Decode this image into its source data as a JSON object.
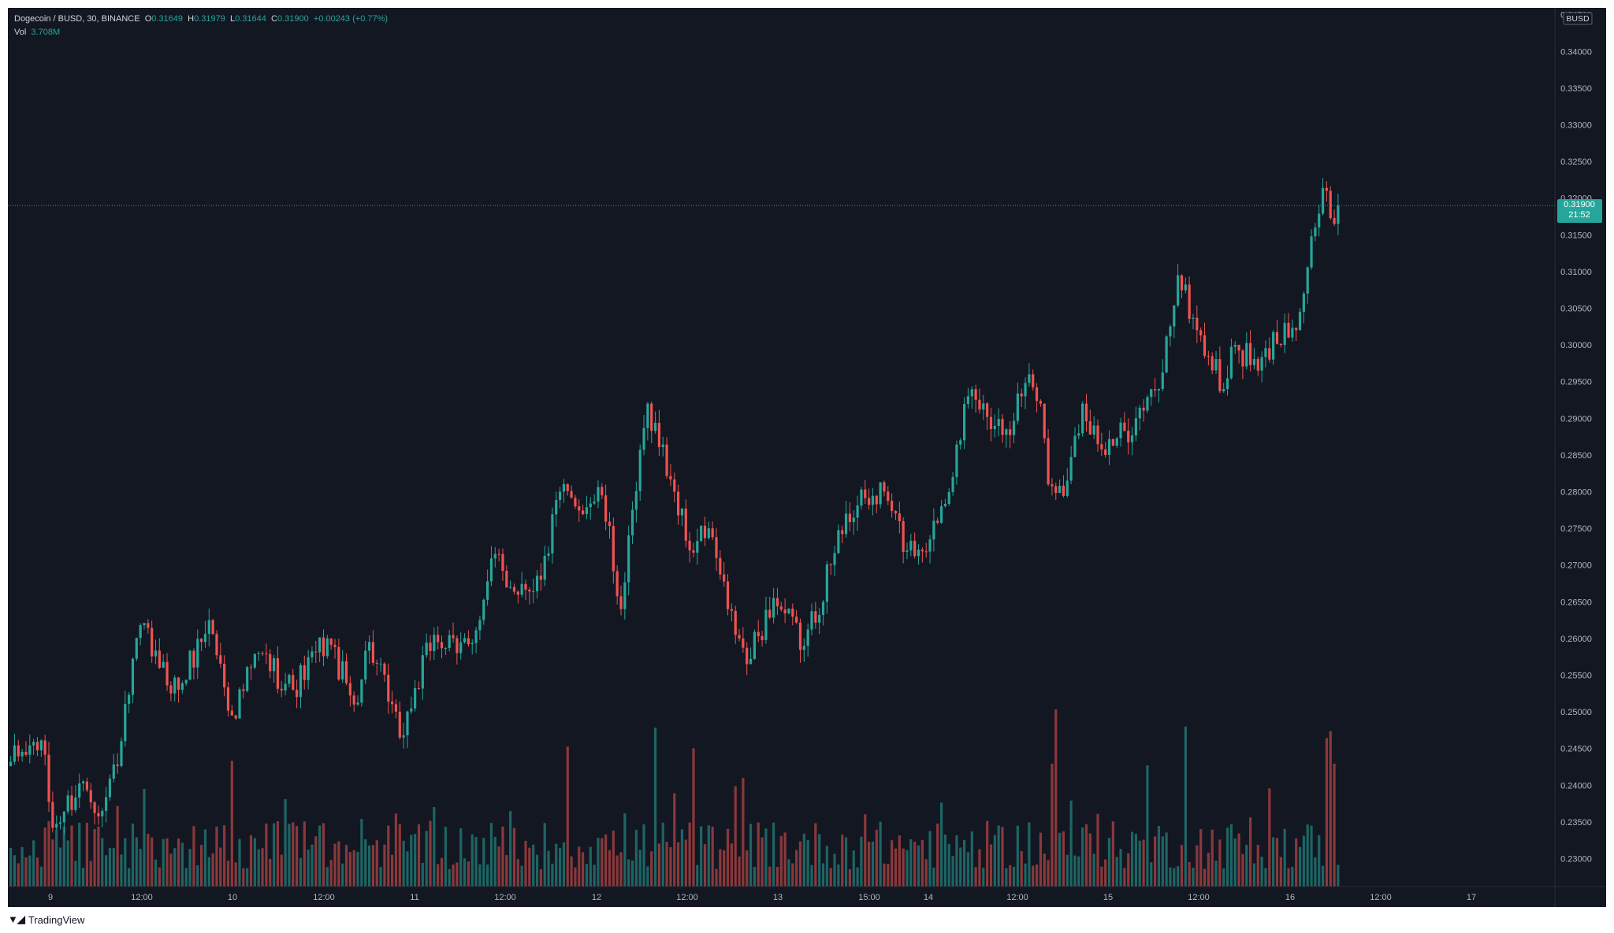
{
  "header": {
    "symbol": "Dogecoin / BUSD, 30, BINANCE",
    "o_label": "O",
    "o_value": "0.31649",
    "h_label": "H",
    "h_value": "0.31979",
    "l_label": "L",
    "l_value": "0.31644",
    "c_label": "C",
    "c_value": "0.31900",
    "change": "+0.00243 (+0.77%)",
    "vol_label": "Vol",
    "vol_value": "3.708M"
  },
  "price_axis": {
    "currency": "BUSD",
    "ticks": [
      "0.34500",
      "0.34000",
      "0.33500",
      "0.33000",
      "0.32500",
      "0.32000",
      "0.31500",
      "0.31000",
      "0.30500",
      "0.30000",
      "0.29500",
      "0.29000",
      "0.28500",
      "0.28000",
      "0.27500",
      "0.27000",
      "0.26500",
      "0.26000",
      "0.25500",
      "0.25000",
      "0.24500",
      "0.24000",
      "0.23500",
      "0.23000"
    ],
    "last_price_label": "0.31900",
    "countdown": "21:52"
  },
  "time_axis": {
    "labels": [
      "9",
      "12:00",
      "10",
      "12:00",
      "11",
      "12:00",
      "12",
      "12:00",
      "13",
      "15:00",
      "14",
      "12:00",
      "15",
      "12:00",
      "16",
      "12:00",
      "17"
    ]
  },
  "footer": {
    "brand": "TradingView"
  },
  "colors": {
    "background": "#131722",
    "up": "#26a69a",
    "down": "#ef5350",
    "text": "#d1d4dc"
  },
  "chart_data": {
    "type": "candlestick",
    "interval_minutes": 30,
    "x_start": "2021-04-08 19:30",
    "ylim": [
      0.2265,
      0.3455
    ],
    "last_price": 0.319,
    "waypoints": [
      {
        "t": "2021-04-08 19:30",
        "p": 0.2432
      },
      {
        "t": "2021-04-08 23:30",
        "p": 0.2461
      },
      {
        "t": "2021-04-09 01:00",
        "p": 0.2342
      },
      {
        "t": "2021-04-09 05:00",
        "p": 0.2405
      },
      {
        "t": "2021-04-09 07:30",
        "p": 0.2365
      },
      {
        "t": "2021-04-09 10:00",
        "p": 0.246
      },
      {
        "t": "2021-04-09 12:30",
        "p": 0.2618
      },
      {
        "t": "2021-04-09 15:00",
        "p": 0.256
      },
      {
        "t": "2021-04-09 17:30",
        "p": 0.253
      },
      {
        "t": "2021-04-09 21:30",
        "p": 0.2625
      },
      {
        "t": "2021-04-10 00:30",
        "p": 0.2495
      },
      {
        "t": "2021-04-10 04:00",
        "p": 0.258
      },
      {
        "t": "2021-04-10 08:30",
        "p": 0.253
      },
      {
        "t": "2021-04-10 13:00",
        "p": 0.26
      },
      {
        "t": "2021-04-10 16:30",
        "p": 0.251
      },
      {
        "t": "2021-04-10 18:30",
        "p": 0.2595
      },
      {
        "t": "2021-04-10 22:30",
        "p": 0.2465
      },
      {
        "t": "2021-04-11 03:00",
        "p": 0.2605
      },
      {
        "t": "2021-04-11 06:00",
        "p": 0.258
      },
      {
        "t": "2021-04-11 09:00",
        "p": 0.2625
      },
      {
        "t": "2021-04-11 11:00",
        "p": 0.2715
      },
      {
        "t": "2021-04-11 13:00",
        "p": 0.267
      },
      {
        "t": "2021-04-11 17:00",
        "p": 0.268
      },
      {
        "t": "2021-04-11 19:30",
        "p": 0.28
      },
      {
        "t": "2021-04-11 21:30",
        "p": 0.278
      },
      {
        "t": "2021-04-12 01:00",
        "p": 0.2795
      },
      {
        "t": "2021-04-12 03:30",
        "p": 0.264
      },
      {
        "t": "2021-04-12 07:00",
        "p": 0.292
      },
      {
        "t": "2021-04-12 10:30",
        "p": 0.28
      },
      {
        "t": "2021-04-12 12:30",
        "p": 0.272
      },
      {
        "t": "2021-04-12 15:00",
        "p": 0.275
      },
      {
        "t": "2021-04-12 17:30",
        "p": 0.264
      },
      {
        "t": "2021-04-12 20:00",
        "p": 0.2565
      },
      {
        "t": "2021-04-12 23:30",
        "p": 0.2655
      },
      {
        "t": "2021-04-13 03:30",
        "p": 0.259
      },
      {
        "t": "2021-04-13 07:00",
        "p": 0.27
      },
      {
        "t": "2021-04-13 09:00",
        "p": 0.277
      },
      {
        "t": "2021-04-13 14:00",
        "p": 0.28
      },
      {
        "t": "2021-04-13 17:00",
        "p": 0.272
      },
      {
        "t": "2021-04-13 20:00",
        "p": 0.2735
      },
      {
        "t": "2021-04-14 00:00",
        "p": 0.287
      },
      {
        "t": "2021-04-14 01:00",
        "p": 0.293
      },
      {
        "t": "2021-04-14 06:00",
        "p": 0.2885
      },
      {
        "t": "2021-04-14 09:00",
        "p": 0.296
      },
      {
        "t": "2021-04-14 10:30",
        "p": 0.292
      },
      {
        "t": "2021-04-14 11:30",
        "p": 0.281
      },
      {
        "t": "2021-04-14 14:00",
        "p": 0.2815
      },
      {
        "t": "2021-04-14 16:00",
        "p": 0.292
      },
      {
        "t": "2021-04-14 19:00",
        "p": 0.285
      },
      {
        "t": "2021-04-14 23:00",
        "p": 0.29
      },
      {
        "t": "2021-04-15 02:00",
        "p": 0.294
      },
      {
        "t": "2021-04-15 04:30",
        "p": 0.3095
      },
      {
        "t": "2021-04-15 07:00",
        "p": 0.302
      },
      {
        "t": "2021-04-15 10:30",
        "p": 0.294
      },
      {
        "t": "2021-04-15 12:00",
        "p": 0.3
      },
      {
        "t": "2021-04-15 15:00",
        "p": 0.2965
      },
      {
        "t": "2021-04-15 18:30",
        "p": 0.303
      },
      {
        "t": "2021-04-15 20:00",
        "p": 0.302
      },
      {
        "t": "2021-04-15 22:30",
        "p": 0.316
      },
      {
        "t": "2021-04-16 00:00",
        "p": 0.321
      },
      {
        "t": "2021-04-16 01:00",
        "p": 0.3165
      },
      {
        "t": "2021-04-16 01:30",
        "p": 0.319
      }
    ],
    "volume_ylim": [
      0,
      3200
    ],
    "volume_peaks": [
      {
        "t": "2021-04-10 00:30",
        "v": 2200
      },
      {
        "t": "2021-04-11 20:30",
        "v": 2450
      },
      {
        "t": "2021-04-12 08:00",
        "v": 2780
      },
      {
        "t": "2021-04-12 13:00",
        "v": 2420
      },
      {
        "t": "2021-04-12 19:30",
        "v": 1900
      },
      {
        "t": "2021-04-14 12:00",
        "v": 2150
      },
      {
        "t": "2021-04-14 12:30",
        "v": 3100
      },
      {
        "t": "2021-04-15 05:30",
        "v": 2800
      },
      {
        "t": "2021-04-15 00:30",
        "v": 2120
      },
      {
        "t": "2021-04-16 00:00",
        "v": 2600
      },
      {
        "t": "2021-04-16 00:30",
        "v": 2720
      },
      {
        "t": "2021-04-16 01:00",
        "v": 2150
      }
    ]
  }
}
